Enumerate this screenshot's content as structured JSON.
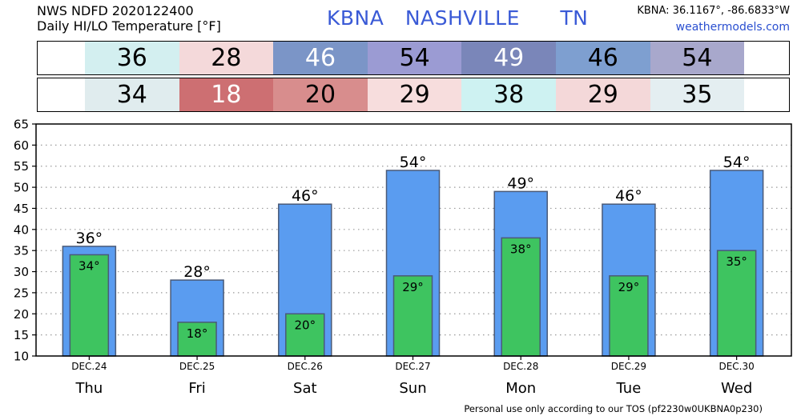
{
  "header": {
    "source_line": "NWS NDFD 2020122400",
    "product_line": "Daily HI/LO Temperature [°F]",
    "station_id": "KBNA",
    "station_name": "NASHVILLE",
    "state": "TN",
    "coords": "KBNA: 36.1167°, -86.6833°W",
    "site": "weathermodels.com"
  },
  "bands": {
    "hi": {
      "values": [
        "36",
        "28",
        "46",
        "54",
        "49",
        "46",
        "54"
      ],
      "colors": [
        "#d3eff0",
        "#f4d9da",
        "#7b95c7",
        "#9b9bd3",
        "#7a86b9",
        "#7e9fd0",
        "#a8a8cc"
      ],
      "text_colors": [
        "#000000",
        "#000000",
        "#ffffff",
        "#000000",
        "#ffffff",
        "#000000",
        "#000000"
      ]
    },
    "lo": {
      "values": [
        "34",
        "18",
        "20",
        "29",
        "38",
        "29",
        "35"
      ],
      "colors": [
        "#e0ecee",
        "#cd6f72",
        "#d88d8d",
        "#f7dddd",
        "#cef2f2",
        "#f4d8d9",
        "#e4eef1"
      ],
      "text_colors": [
        "#000000",
        "#ffffff",
        "#000000",
        "#000000",
        "#000000",
        "#000000",
        "#000000"
      ]
    }
  },
  "chart_data": {
    "type": "bar",
    "categories": [
      "Thu",
      "Fri",
      "Sat",
      "Sun",
      "Mon",
      "Tue",
      "Wed"
    ],
    "dates": [
      "DEC.24",
      "DEC.25",
      "DEC.26",
      "DEC.27",
      "DEC.28",
      "DEC.29",
      "DEC.30"
    ],
    "series": [
      {
        "values": [
          36,
          28,
          46,
          54,
          49,
          46,
          54
        ],
        "color": "#5a9cf0",
        "label_suffix": "°"
      },
      {
        "values": [
          34,
          18,
          20,
          29,
          38,
          29,
          35
        ],
        "color": "#3ec460",
        "label_suffix": "°"
      }
    ],
    "ylim": [
      10,
      65
    ],
    "yticks": [
      10,
      15,
      20,
      25,
      30,
      35,
      40,
      45,
      50,
      55,
      60,
      65
    ],
    "grid": true,
    "title": "",
    "xlabel": "",
    "ylabel": ""
  },
  "footer": "Personal use only according to our TOS (pf2230w0UKBNA0p230)"
}
